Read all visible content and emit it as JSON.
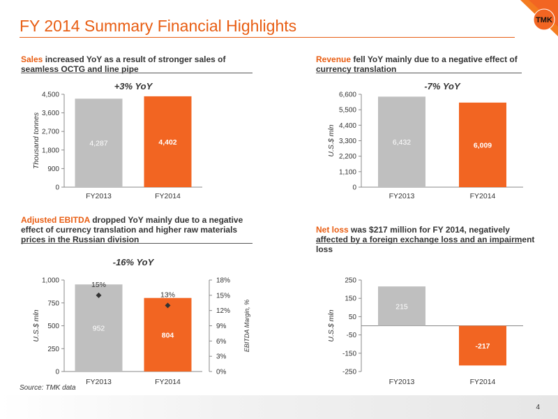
{
  "title": "FY 2014 Summary Financial Highlights",
  "logo_text": "TMK",
  "colors": {
    "accent": "#F26522",
    "gray": "#BFBFBF",
    "dark": "#333333"
  },
  "captions": {
    "sales": {
      "highlight": "Sales",
      "rest": " increased YoY as a result of stronger sales of seamless OCTG and line pipe"
    },
    "revenue": {
      "highlight": "Revenue",
      "rest": " fell YoY mainly due to a negative effect of currency translation"
    },
    "ebitda": {
      "highlight": "Adjusted EBITDA",
      "rest": " dropped YoY mainly due to a negative effect of currency translation and higher raw materials prices in the Russian division"
    },
    "netloss": {
      "highlight": "Net loss",
      "rest": " was $217 million for FY 2014, negatively affected by a foreign exchange loss and an impairment loss"
    }
  },
  "source": "Source: TMK data",
  "page_number": "4",
  "chart_data": [
    {
      "id": "sales",
      "type": "bar",
      "title": "+3% YoY",
      "ylabel": "Thousand tonnes",
      "categories": [
        "FY2013",
        "FY2014"
      ],
      "values": [
        4287,
        4402
      ],
      "value_labels": [
        "4,287",
        "4,402"
      ],
      "ylim": [
        0,
        4500
      ],
      "yticks": [
        "0",
        "900",
        "1,800",
        "2,700",
        "3,600",
        "4,500"
      ]
    },
    {
      "id": "revenue",
      "type": "bar",
      "title": "-7% YoY",
      "ylabel": "U.S.$ mln",
      "categories": [
        "FY2013",
        "FY2014"
      ],
      "values": [
        6432,
        6009
      ],
      "value_labels": [
        "6,432",
        "6,009"
      ],
      "ylim": [
        0,
        6600
      ],
      "yticks": [
        "0",
        "1,100",
        "2,200",
        "3,300",
        "4,400",
        "5,500",
        "6,600"
      ]
    },
    {
      "id": "ebitda",
      "type": "bar",
      "title": "-16% YoY",
      "ylabel": "U.S.$ mln",
      "y2label": "EBITDA Margin, %",
      "categories": [
        "FY2013",
        "FY2014"
      ],
      "values": [
        952,
        804
      ],
      "value_labels": [
        "952",
        "804"
      ],
      "ylim": [
        0,
        1000
      ],
      "yticks": [
        "0",
        "250",
        "500",
        "750",
        "1,000"
      ],
      "margin_values": [
        15,
        13
      ],
      "margin_labels": [
        "15%",
        "13%"
      ],
      "y2lim": [
        0,
        18
      ],
      "y2ticks": [
        "0%",
        "3%",
        "6%",
        "9%",
        "12%",
        "15%",
        "18%"
      ]
    },
    {
      "id": "netloss",
      "type": "bar",
      "title": "",
      "ylabel": "U.S.$ mln",
      "categories": [
        "FY2013",
        "FY2014"
      ],
      "values": [
        215,
        -217
      ],
      "value_labels": [
        "215",
        "-217"
      ],
      "ylim": [
        -250,
        250
      ],
      "yticks": [
        "-250",
        "-150",
        "-50",
        "50",
        "150",
        "250"
      ]
    }
  ]
}
